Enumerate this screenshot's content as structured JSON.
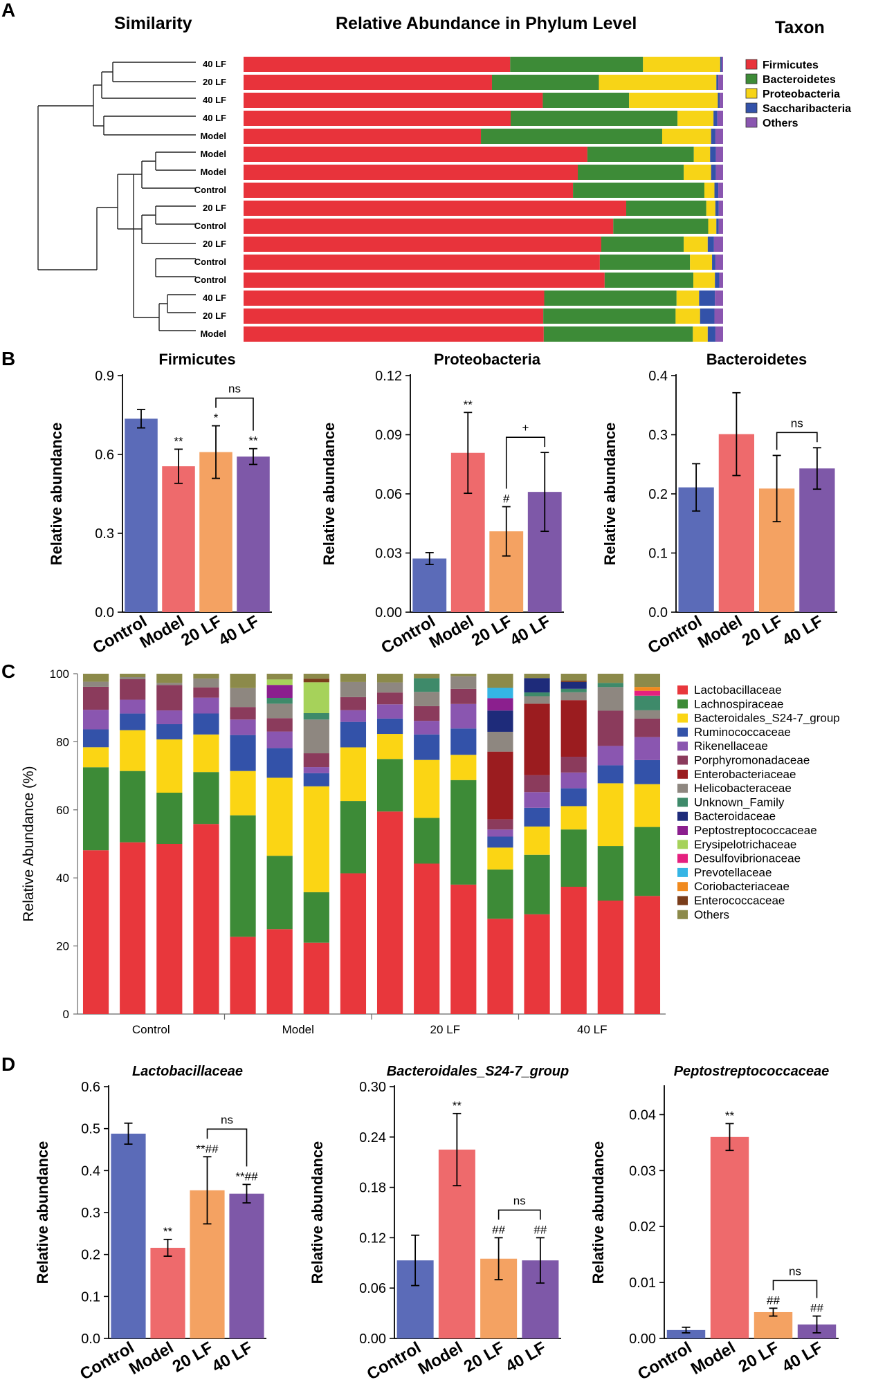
{
  "panel_letters": {
    "a": "A",
    "b": "B",
    "c": "C",
    "d": "D"
  },
  "panelA": {
    "left_title": "Similarity",
    "center_title": "Relative Abundance in Phylum Level",
    "right_title": "Taxon",
    "colors": [
      "#e8333b",
      "#3d8b37",
      "#f7d417",
      "#3352a9",
      "#8a56b0"
    ]
  },
  "chart_data": [
    {
      "type": "bar",
      "subtype": "stacked-horizontal-100",
      "title": "Relative Abundance in Phylum Level",
      "legend_title": "Taxon",
      "legend": [
        "Firmicutes",
        "Bacteroidetes",
        "Proteobacteria",
        "Saccharibacteria",
        "Others"
      ],
      "categories": [
        "40 LF",
        "20 LF",
        "40 LF",
        "40 LF",
        "Model",
        "Model",
        "Model",
        "Control",
        "20 LF",
        "Control",
        "20 LF",
        "Control",
        "Control",
        "40 LF",
        "20 LF",
        "Model"
      ],
      "series": [
        {
          "name": "Firmicutes",
          "values": [
            0.556,
            0.518,
            0.624,
            0.557,
            0.495,
            0.717,
            0.697,
            0.687,
            0.798,
            0.771,
            0.746,
            0.743,
            0.753,
            0.627,
            0.625,
            0.626
          ]
        },
        {
          "name": "Bacteroidetes",
          "values": [
            0.277,
            0.223,
            0.18,
            0.348,
            0.378,
            0.222,
            0.221,
            0.274,
            0.167,
            0.198,
            0.172,
            0.188,
            0.185,
            0.276,
            0.276,
            0.311
          ]
        },
        {
          "name": "Proteobacteria",
          "values": [
            0.161,
            0.245,
            0.185,
            0.075,
            0.102,
            0.034,
            0.057,
            0.021,
            0.019,
            0.017,
            0.05,
            0.046,
            0.045,
            0.047,
            0.051,
            0.031
          ]
        },
        {
          "name": "Saccharibacteria",
          "values": [
            0.003,
            0.004,
            0.004,
            0.008,
            0.009,
            0.012,
            0.01,
            0.008,
            0.007,
            0.005,
            0.013,
            0.007,
            0.009,
            0.033,
            0.03,
            0.016
          ]
        },
        {
          "name": "Others",
          "values": [
            0.003,
            0.01,
            0.007,
            0.012,
            0.016,
            0.015,
            0.015,
            0.01,
            0.009,
            0.009,
            0.019,
            0.016,
            0.008,
            0.017,
            0.018,
            0.016
          ]
        }
      ],
      "xlim": [
        0,
        1
      ]
    },
    {
      "type": "bar",
      "title": "Firmicutes",
      "categories": [
        "Control",
        "Model",
        "20 LF",
        "40 LF"
      ],
      "values": [
        0.736,
        0.555,
        0.609,
        0.592
      ],
      "errors": [
        0.035,
        0.065,
        0.1,
        0.03
      ],
      "significance": [
        "",
        "**",
        "*",
        "**"
      ],
      "bracket": {
        "from": "20 LF",
        "to": "40 LF",
        "label": "ns"
      },
      "ylabel": "Relative abundance",
      "ylim": [
        0,
        0.9
      ],
      "yticks": [
        "0.0",
        "0.3",
        "0.6",
        "0.9"
      ],
      "colors": [
        "#5b6bb8",
        "#ee6a6c",
        "#f4a262",
        "#7e58a8"
      ]
    },
    {
      "type": "bar",
      "title": "Proteobacteria",
      "categories": [
        "Control",
        "Model",
        "20 LF",
        "40 LF"
      ],
      "values": [
        0.0272,
        0.0808,
        0.041,
        0.061
      ],
      "errors": [
        0.003,
        0.0205,
        0.0125,
        0.02
      ],
      "significance": [
        "",
        "**",
        "#",
        ""
      ],
      "bracket": {
        "from": "20 LF",
        "to": "40 LF",
        "label": "+"
      },
      "ylabel": "Relative abundance",
      "ylim": [
        0,
        0.12
      ],
      "yticks": [
        "0.00",
        "0.03",
        "0.06",
        "0.09",
        "0.12"
      ],
      "colors": [
        "#5b6bb8",
        "#ee6a6c",
        "#f4a262",
        "#7e58a8"
      ]
    },
    {
      "type": "bar",
      "title": "Bacteroidetes",
      "categories": [
        "Control",
        "Model",
        "20 LF",
        "40 LF"
      ],
      "values": [
        0.211,
        0.301,
        0.209,
        0.243
      ],
      "errors": [
        0.04,
        0.07,
        0.056,
        0.035
      ],
      "significance": [
        "",
        "",
        "",
        ""
      ],
      "bracket": {
        "from": "20 LF",
        "to": "40 LF",
        "label": "ns"
      },
      "ylabel": "Relative abundance",
      "ylim": [
        0,
        0.4
      ],
      "yticks": [
        "0.0",
        "0.1",
        "0.2",
        "0.3",
        "0.4"
      ],
      "colors": [
        "#5b6bb8",
        "#ee6a6c",
        "#f4a262",
        "#7e58a8"
      ]
    },
    {
      "type": "bar",
      "subtype": "stacked-vertical-100",
      "title": "",
      "groups": [
        "Control",
        "Model",
        "20 LF",
        "40 LF"
      ],
      "samples_per_group": 4,
      "ylabel": "Relative Abundance (%)",
      "ylim": [
        0,
        100
      ],
      "yticks": [
        "0",
        "20",
        "40",
        "60",
        "80",
        "100"
      ],
      "legend": [
        "Lactobacillaceae",
        "Lachnospiraceae",
        "Bacteroidales_S24-7_group",
        "Ruminococcaceae",
        "Rikenellaceae",
        "Porphyromonadaceae",
        "Enterobacteriaceae",
        "Helicobacteraceae",
        "Unknown_Family",
        "Bacteroidaceae",
        "Peptostreptococcaceae",
        "Erysipelotrichaceae",
        "Desulfovibrionaceae",
        "Prevotellaceae",
        "Coriobacteriaceae",
        "Enterococcaceae",
        "Others"
      ],
      "colors": [
        "#e8373c",
        "#3d8b37",
        "#fbd514",
        "#3352a9",
        "#8a56b0",
        "#8b3b5c",
        "#9b1c1f",
        "#8e8780",
        "#3e8a6a",
        "#1e2b7a",
        "#8b1f8e",
        "#a6d25a",
        "#e5207f",
        "#35b5e5",
        "#f08a1f",
        "#7a3d1b",
        "#8c8a4a"
      ],
      "samples": [
        [
          45,
          22.8,
          5.5,
          4.9,
          5.4,
          6.3,
          0,
          1.4,
          0,
          0,
          0,
          0,
          0,
          0,
          0,
          0,
          2.2
        ],
        [
          49.6,
          20.6,
          11.8,
          4.8,
          4,
          5.9,
          0,
          0.6,
          0,
          0,
          0,
          0,
          0,
          0,
          0,
          0,
          1
        ],
        [
          48.2,
          14.5,
          15.1,
          4.3,
          3.9,
          7.2,
          0,
          0.6,
          0,
          0,
          0,
          0,
          0,
          0,
          0,
          0,
          2.6
        ],
        [
          51.6,
          14.1,
          10.2,
          5.7,
          4.3,
          2.8,
          0,
          2.4,
          0,
          0,
          0,
          0,
          0,
          0,
          0,
          0,
          1.3
        ],
        [
          20.4,
          32.1,
          11.7,
          9.5,
          4.1,
          3.3,
          0,
          5,
          0,
          0,
          0,
          0,
          0,
          0,
          0,
          0,
          3.8
        ],
        [
          23.5,
          20.3,
          21.6,
          8.2,
          4.6,
          3.7,
          0,
          4,
          1.6,
          0,
          3.6,
          1.5,
          0,
          0,
          0,
          0,
          1.6
        ],
        [
          20.1,
          14.2,
          29.8,
          3.7,
          1.7,
          3.9,
          0,
          9.5,
          1.8,
          0,
          0,
          8.7,
          0,
          0,
          0,
          1,
          1.4
        ],
        [
          40.9,
          21,
          15.6,
          7.4,
          3.4,
          3.8,
          0,
          4.4,
          0,
          0,
          0,
          0,
          0,
          0,
          0,
          0,
          2.4
        ],
        [
          58.2,
          15.1,
          7.2,
          4.4,
          4.1,
          3.4,
          0,
          2.9,
          0,
          0,
          0,
          0,
          0,
          0,
          0,
          0,
          2.5
        ],
        [
          43.1,
          13.1,
          16.6,
          7.3,
          3.9,
          4.2,
          0,
          4.1,
          3.9,
          0,
          0,
          0,
          0,
          0,
          0,
          0,
          1.3
        ],
        [
          35.9,
          29,
          7,
          7.3,
          6.8,
          4.2,
          0,
          3.5,
          0,
          0,
          0,
          0,
          0,
          0,
          0,
          0,
          0.7
        ],
        [
          26.9,
          13.9,
          6.2,
          3.1,
          2,
          2.9,
          19.1,
          5.6,
          0,
          6,
          3.5,
          0,
          0,
          2.9,
          0,
          0,
          4
        ],
        [
          29.3,
          17.5,
          8.3,
          5.5,
          4.6,
          5,
          21,
          2.2,
          1.1,
          4.2,
          0,
          0,
          0,
          0,
          0,
          0,
          1.3
        ],
        [
          37.1,
          16.7,
          6.8,
          5.2,
          4.6,
          4.6,
          16.5,
          2.3,
          1,
          2,
          0,
          0,
          0,
          0,
          0,
          0.4,
          2
        ],
        [
          32.2,
          15.5,
          17.8,
          5.1,
          5.5,
          10,
          0,
          6.7,
          1.2,
          0,
          0,
          0,
          0,
          0,
          0,
          0,
          2.6
        ],
        [
          33.9,
          19.8,
          12.3,
          6.9,
          6.6,
          5.3,
          0,
          2.4,
          4.2,
          0,
          0,
          0,
          1.4,
          0,
          1.1,
          0,
          3.8
        ]
      ]
    },
    {
      "type": "bar",
      "title": "Lactobacillaceae",
      "categories": [
        "Control",
        "Model",
        "20 LF",
        "40 LF"
      ],
      "values": [
        0.488,
        0.216,
        0.353,
        0.345
      ],
      "errors": [
        0.025,
        0.02,
        0.08,
        0.022
      ],
      "significance": [
        "",
        "**",
        "**##",
        "**##"
      ],
      "bracket": {
        "from": "20 LF",
        "to": "40 LF",
        "label": "ns"
      },
      "ylabel": "Relative abundance",
      "ylim": [
        0,
        0.6
      ],
      "yticks": [
        "0.0",
        "0.1",
        "0.2",
        "0.3",
        "0.4",
        "0.5",
        "0.6"
      ],
      "colors": [
        "#5b6bb8",
        "#ee6a6c",
        "#f4a262",
        "#7e58a8"
      ]
    },
    {
      "type": "bar",
      "title": "Bacteroidales_S24-7_group",
      "categories": [
        "Control",
        "Model",
        "20 LF",
        "40 LF"
      ],
      "values": [
        0.093,
        0.225,
        0.095,
        0.093
      ],
      "errors": [
        0.03,
        0.043,
        0.025,
        0.027
      ],
      "significance": [
        "",
        "**",
        "##",
        "##"
      ],
      "bracket": {
        "from": "20 LF",
        "to": "40 LF",
        "label": "ns"
      },
      "ylabel": "Relative abundance",
      "ylim": [
        0,
        0.3
      ],
      "yticks": [
        "0.00",
        "0.06",
        "0.12",
        "0.18",
        "0.24",
        "0.30"
      ],
      "colors": [
        "#5b6bb8",
        "#ee6a6c",
        "#f4a262",
        "#7e58a8"
      ]
    },
    {
      "type": "bar",
      "title": "Peptostreptococcaceae",
      "categories": [
        "Control",
        "Model",
        "20 LF",
        "40 LF"
      ],
      "values": [
        0.0015,
        0.036,
        0.0047,
        0.0025
      ],
      "errors": [
        0.0005,
        0.0024,
        0.0007,
        0.0015
      ],
      "significance": [
        "",
        "**",
        "##",
        "##"
      ],
      "bracket": {
        "from": "20 LF",
        "to": "40 LF",
        "label": "ns"
      },
      "ylabel": "Relative abundance",
      "ylim": [
        0,
        0.045
      ],
      "yticks": [
        "0.00",
        "0.01",
        "0.02",
        "0.03",
        "0.04"
      ],
      "colors": [
        "#5b6bb8",
        "#ee6a6c",
        "#f4a262",
        "#7e58a8"
      ]
    }
  ]
}
